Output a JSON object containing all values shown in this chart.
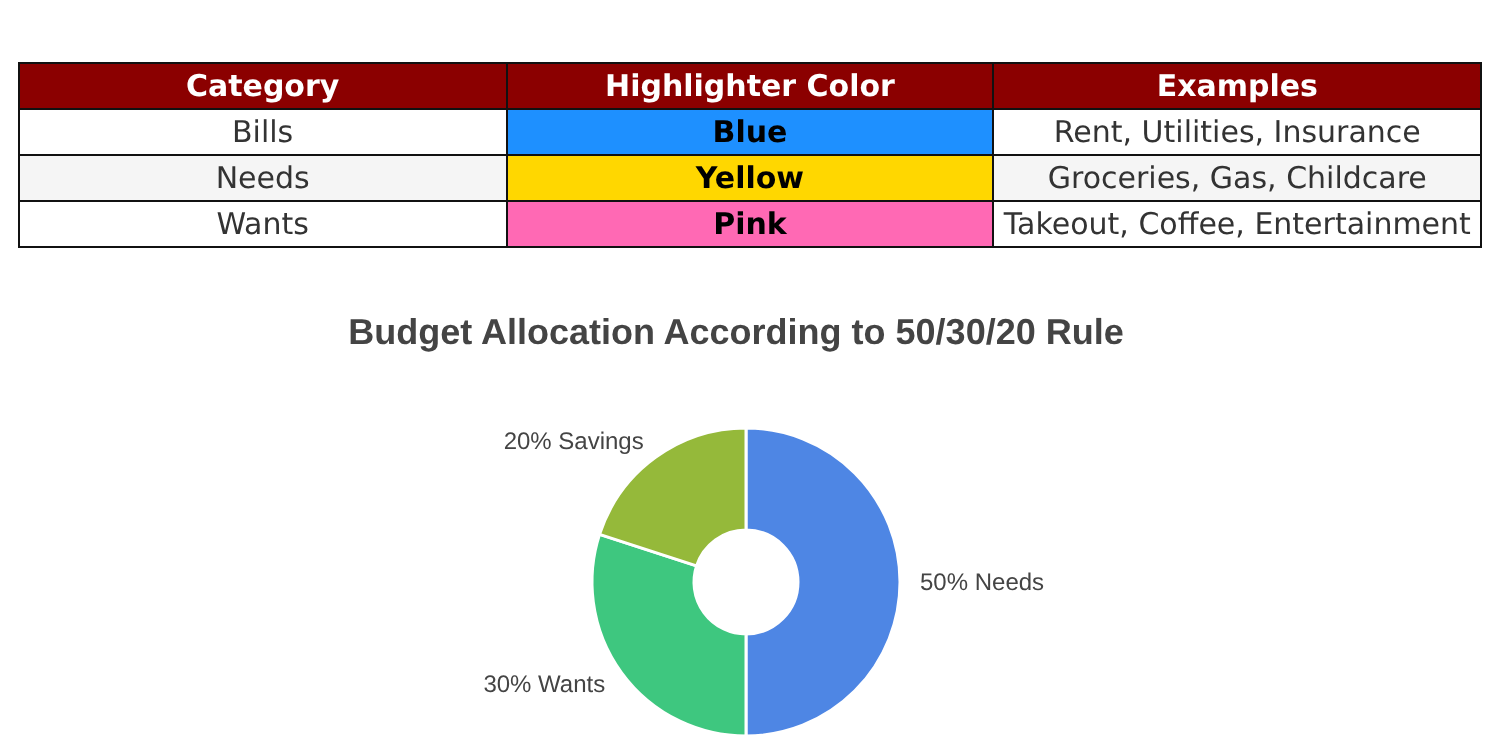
{
  "chart_data": [
    {
      "type": "other",
      "annotations": [
        "Category",
        "Highlighter Color",
        "Examples"
      ],
      "y_categories": [
        "Bills",
        "Needs",
        "Wants"
      ],
      "categories": [
        "Blue",
        "Yellow",
        "Pink"
      ],
      "colors": [
        "#1e90ff",
        "#ffd700",
        "#ff69b4"
      ],
      "y2_categories": [
        "Rent, Utilities, Insurance",
        "Groceries, Gas, Childcare",
        "Takeout, Coffee, Entertainment"
      ]
    },
    {
      "type": "donut",
      "title": "Budget Allocation According to 50/30/20 Rule",
      "categories": [
        "50% Needs",
        "30% Wants",
        "20% Savings"
      ],
      "values": [
        50,
        30,
        20
      ],
      "colors": [
        "#4e86e4",
        "#3ec77f",
        "#95b93a"
      ]
    }
  ]
}
